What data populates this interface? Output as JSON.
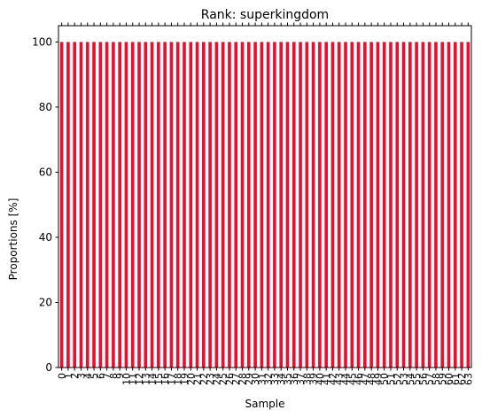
{
  "colors": {
    "bar": "#e8102f",
    "axis": "#000000",
    "background": "#ffffff"
  },
  "chart_data": {
    "type": "bar",
    "title": "Rank: superkingdom",
    "xlabel": "Sample",
    "ylabel": "Proportions [%]",
    "ylim": [
      0,
      105
    ],
    "yticks": [
      0,
      20,
      40,
      60,
      80,
      100
    ],
    "grid": false,
    "legend": "none",
    "categories": [
      "0",
      "1",
      "2",
      "3",
      "4",
      "5",
      "6",
      "7",
      "8",
      "9",
      "10",
      "11",
      "12",
      "13",
      "14",
      "15",
      "16",
      "17",
      "18",
      "19",
      "20",
      "21",
      "22",
      "23",
      "24",
      "25",
      "26",
      "27",
      "28",
      "29",
      "30",
      "31",
      "32",
      "33",
      "34",
      "35",
      "36",
      "37",
      "38",
      "39",
      "40",
      "41",
      "42",
      "43",
      "44",
      "45",
      "46",
      "47",
      "48",
      "49",
      "50",
      "51",
      "52",
      "53",
      "54",
      "55",
      "56",
      "57",
      "58",
      "59",
      "60",
      "61",
      "62",
      "63"
    ],
    "values": [
      100,
      100,
      100,
      100,
      100,
      100,
      100,
      100,
      100,
      100,
      100,
      100,
      100,
      100,
      100,
      100,
      100,
      100,
      100,
      100,
      100,
      100,
      100,
      100,
      100,
      100,
      100,
      100,
      100,
      100,
      100,
      100,
      100,
      100,
      100,
      100,
      100,
      100,
      100,
      100,
      100,
      100,
      100,
      100,
      100,
      100,
      100,
      100,
      100,
      100,
      100,
      100,
      100,
      100,
      100,
      100,
      100,
      100,
      100,
      100,
      100,
      100,
      100,
      100
    ]
  }
}
